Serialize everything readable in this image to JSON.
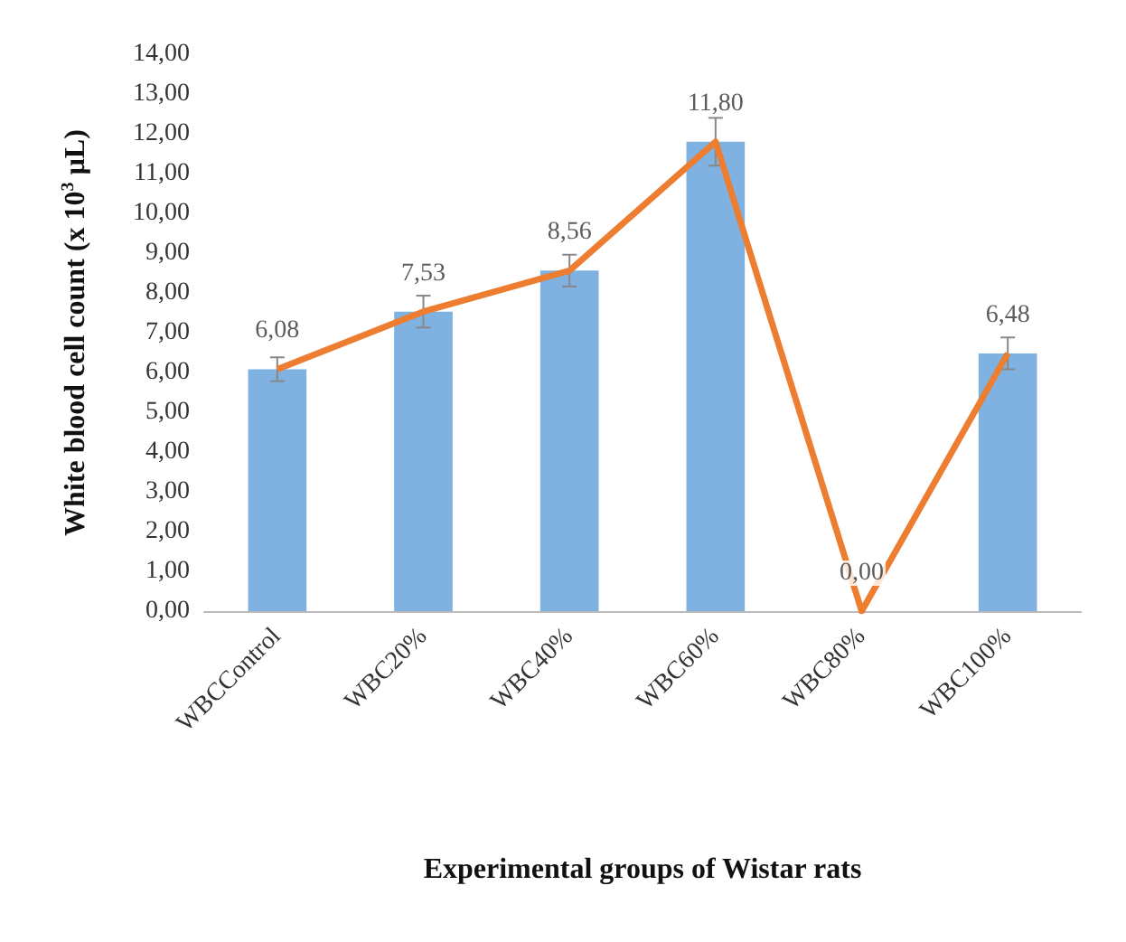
{
  "chart_data": {
    "type": "bar",
    "xlabel": "Experimental groups of Wistar rats",
    "ylabel": "White blood cell count (x 10$^{3}$ µL)",
    "categories": [
      "WBCControl",
      "WBC20%",
      "WBC40%",
      "WBC60%",
      "WBC80%",
      "WBC100%"
    ],
    "series": [
      {
        "color": "#7fb2e0",
        "values": [
          6.08,
          7.53,
          8.56,
          11.8,
          0,
          6.48
        ],
        "errors": [
          0.3,
          0.4,
          0.4,
          0.6,
          null,
          0.4
        ],
        "value_labels": [
          "6,08",
          "7,53",
          "8,56",
          "11,80",
          "0,00",
          "6,48"
        ]
      },
      {
        "type": "line",
        "color": "#ed7d31",
        "values": [
          6.08,
          7.53,
          8.56,
          11.8,
          0,
          6.48
        ]
      }
    ],
    "ylim": [
      0,
      14
    ],
    "yticks": [
      {
        "value": 0,
        "label": "0,00"
      },
      {
        "value": 1,
        "label": "1,00"
      },
      {
        "value": 2,
        "label": "2,00"
      },
      {
        "value": 3,
        "label": "3,00"
      },
      {
        "value": 4,
        "label": "4,00"
      },
      {
        "value": 5,
        "label": "5,00"
      },
      {
        "value": 6,
        "label": "6,00"
      },
      {
        "value": 7,
        "label": "7,00"
      },
      {
        "value": 8,
        "label": "8,00"
      },
      {
        "value": 9,
        "label": "9,00"
      },
      {
        "value": 10,
        "label": "10,00"
      },
      {
        "value": 11,
        "label": "11,00"
      },
      {
        "value": 12,
        "label": "12,00"
      },
      {
        "value": 13,
        "label": "13,00"
      },
      {
        "value": 14,
        "label": "14,00"
      }
    ],
    "grid": false,
    "marker": "none",
    "line_style": "solid"
  }
}
